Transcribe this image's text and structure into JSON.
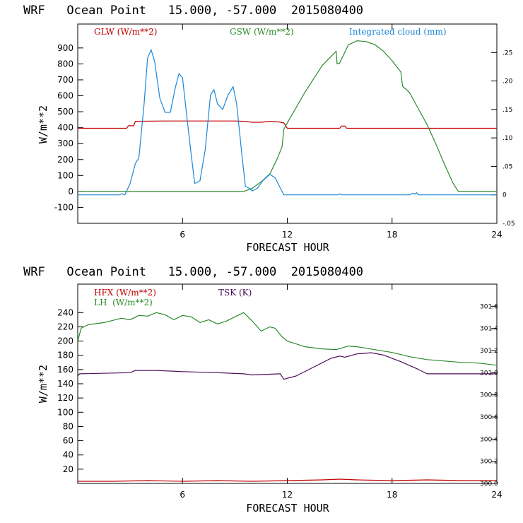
{
  "chart_data": [
    {
      "type": "line",
      "title": "WRF   Ocean Point   15.000, -57.000  2015080400",
      "xlabel": "FORECAST HOUR",
      "ylabel": "W/m**2",
      "xlim": [
        0,
        24
      ],
      "ylim": [
        -200,
        1050
      ],
      "y2lim": [
        -0.05,
        0.3
      ],
      "x_ticks": [
        6,
        12,
        18,
        24
      ],
      "y_ticks": [
        -100,
        0,
        100,
        200,
        300,
        400,
        500,
        600,
        700,
        800,
        900
      ],
      "y2_ticks": [
        -0.05,
        0,
        0.05,
        0.1,
        0.15,
        0.2,
        0.25
      ],
      "y2_tick_labels": [
        "-.05",
        "0",
        ".05",
        ".10",
        ".15",
        ".20",
        ".25"
      ],
      "series": [
        {
          "name": "GLW (W/m**2)",
          "color": "#c00000",
          "axis": "left",
          "points": [
            [
              0,
              396
            ],
            [
              2.8,
              396
            ],
            [
              2.9,
              412
            ],
            [
              3.2,
              412
            ],
            [
              3.3,
              440
            ],
            [
              5,
              442
            ],
            [
              7,
              442
            ],
            [
              9,
              442
            ],
            [
              9.5,
              440
            ],
            [
              10,
              434
            ],
            [
              10.5,
              434
            ],
            [
              11,
              440
            ],
            [
              11.5,
              436
            ],
            [
              11.8,
              430
            ],
            [
              12,
              396
            ],
            [
              15,
              396
            ],
            [
              15.1,
              410
            ],
            [
              15.3,
              410
            ],
            [
              15.4,
              396
            ],
            [
              24,
              396
            ]
          ]
        },
        {
          "name": "GSW (W/m**2)",
          "color": "#2a8a2a",
          "axis": "left",
          "points": [
            [
              0,
              0
            ],
            [
              9.5,
              0
            ],
            [
              10,
              20
            ],
            [
              10.5,
              60
            ],
            [
              11,
              110
            ],
            [
              11.4,
              200
            ],
            [
              11.7,
              280
            ],
            [
              11.8,
              390
            ],
            [
              12,
              430
            ],
            [
              13,
              620
            ],
            [
              14,
              790
            ],
            [
              14.8,
              880
            ],
            [
              14.85,
              800
            ],
            [
              15.0,
              805
            ],
            [
              15.5,
              920
            ],
            [
              16,
              945
            ],
            [
              16.5,
              940
            ],
            [
              17,
              922
            ],
            [
              17.5,
              880
            ],
            [
              18,
              820
            ],
            [
              18.5,
              750
            ],
            [
              18.6,
              660
            ],
            [
              18.8,
              640
            ],
            [
              19,
              620
            ],
            [
              19.5,
              520
            ],
            [
              20,
              420
            ],
            [
              20.5,
              300
            ],
            [
              21,
              170
            ],
            [
              21.5,
              50
            ],
            [
              21.8,
              0
            ],
            [
              24,
              0
            ]
          ]
        },
        {
          "name": "Integrated cloud (mm)",
          "color": "#1a86d8",
          "axis": "right",
          "points": [
            [
              0,
              0
            ],
            [
              2.4,
              0
            ],
            [
              2.5,
              0.002
            ],
            [
              2.7,
              0
            ],
            [
              3,
              0.02
            ],
            [
              3.3,
              0.055
            ],
            [
              3.5,
              0.065
            ],
            [
              3.8,
              0.16
            ],
            [
              4,
              0.24
            ],
            [
              4.2,
              0.255
            ],
            [
              4.4,
              0.235
            ],
            [
              4.7,
              0.17
            ],
            [
              5,
              0.145
            ],
            [
              5.3,
              0.145
            ],
            [
              5.6,
              0.19
            ],
            [
              5.8,
              0.213
            ],
            [
              6,
              0.205
            ],
            [
              6.2,
              0.15
            ],
            [
              6.5,
              0.07
            ],
            [
              6.7,
              0.02
            ],
            [
              7,
              0.025
            ],
            [
              7.3,
              0.08
            ],
            [
              7.6,
              0.175
            ],
            [
              7.8,
              0.185
            ],
            [
              8,
              0.16
            ],
            [
              8.3,
              0.15
            ],
            [
              8.6,
              0.175
            ],
            [
              8.9,
              0.19
            ],
            [
              9.1,
              0.16
            ],
            [
              9.4,
              0.07
            ],
            [
              9.6,
              0.015
            ],
            [
              9.8,
              0.012
            ],
            [
              10,
              0.007
            ],
            [
              10.3,
              0.012
            ],
            [
              10.6,
              0.025
            ],
            [
              11,
              0.036
            ],
            [
              11.3,
              0.03
            ],
            [
              11.6,
              0.012
            ],
            [
              11.8,
              0
            ],
            [
              14.9,
              0
            ],
            [
              15,
              0.002
            ],
            [
              15.1,
              0
            ],
            [
              19.0,
              0
            ],
            [
              19.2,
              0.003
            ],
            [
              19.3,
              0.001
            ],
            [
              19.4,
              0.004
            ],
            [
              19.5,
              0
            ],
            [
              24,
              0
            ]
          ]
        }
      ]
    },
    {
      "type": "line",
      "title": "WRF   Ocean Point   15.000, -57.000  2015080400",
      "xlabel": "FORECAST HOUR",
      "ylabel": "W/m**2",
      "xlim": [
        0,
        24
      ],
      "ylim": [
        0,
        280
      ],
      "y2lim": [
        300.0,
        301.8
      ],
      "x_ticks": [
        6,
        12,
        18,
        24
      ],
      "y_ticks": [
        20,
        40,
        60,
        80,
        100,
        120,
        140,
        160,
        180,
        200,
        220,
        240
      ],
      "y2_ticks": [
        300.0,
        300.2,
        300.4,
        300.6,
        300.8,
        301.0,
        301.2,
        301.4,
        301.6
      ],
      "y2_tick_labels": [
        "300.0",
        "300.2",
        "300.4",
        "300.6",
        "300.8",
        "301.0",
        "301.2",
        "301.4",
        "301.6"
      ],
      "series": [
        {
          "name": "HFX (W/m**2)",
          "color": "#c00000",
          "axis": "left",
          "points": [
            [
              0,
              3
            ],
            [
              2,
              3
            ],
            [
              4,
              4
            ],
            [
              6,
              3
            ],
            [
              8,
              4
            ],
            [
              10,
              3
            ],
            [
              12,
              4
            ],
            [
              14,
              5
            ],
            [
              15,
              6
            ],
            [
              16,
              5
            ],
            [
              18,
              4
            ],
            [
              20,
              5
            ],
            [
              22,
              4
            ],
            [
              24,
              4
            ]
          ]
        },
        {
          "name": "LH  (W/m**2)",
          "color": "#2a8a2a",
          "axis": "left",
          "points": [
            [
              0,
              200
            ],
            [
              0.2,
              218
            ],
            [
              0.6,
              223
            ],
            [
              1.5,
              226
            ],
            [
              2.5,
              232
            ],
            [
              3,
              230
            ],
            [
              3.5,
              236
            ],
            [
              4,
              235
            ],
            [
              4.5,
              240
            ],
            [
              5,
              237
            ],
            [
              5.5,
              230
            ],
            [
              6,
              236
            ],
            [
              6.5,
              234
            ],
            [
              7,
              226
            ],
            [
              7.5,
              230
            ],
            [
              8,
              224
            ],
            [
              8.5,
              228
            ],
            [
              9,
              234
            ],
            [
              9.5,
              240
            ],
            [
              10,
              228
            ],
            [
              10.5,
              214
            ],
            [
              11,
              220
            ],
            [
              11.3,
              218
            ],
            [
              11.7,
              206
            ],
            [
              12,
              200
            ],
            [
              13,
              192
            ],
            [
              14,
              189
            ],
            [
              14.8,
              188
            ],
            [
              15.5,
              193
            ],
            [
              16,
              192
            ],
            [
              17,
              188
            ],
            [
              18,
              184
            ],
            [
              19,
              178
            ],
            [
              20,
              174
            ],
            [
              21,
              172
            ],
            [
              22,
              170
            ],
            [
              23,
              169
            ],
            [
              24,
              166
            ]
          ]
        },
        {
          "name": "TSK (K)",
          "color": "#4a0c5a",
          "axis": "right",
          "points": [
            [
              0,
              300.97
            ],
            [
              0.1,
              300.99
            ],
            [
              3,
              301.0
            ],
            [
              3.3,
              301.02
            ],
            [
              4.5,
              301.02
            ],
            [
              6,
              301.01
            ],
            [
              8,
              301.0
            ],
            [
              9.5,
              300.99
            ],
            [
              10,
              300.98
            ],
            [
              11.6,
              300.99
            ],
            [
              11.8,
              300.94
            ],
            [
              12,
              300.95
            ],
            [
              12.5,
              300.97
            ],
            [
              13.5,
              301.05
            ],
            [
              14.5,
              301.13
            ],
            [
              15,
              301.15
            ],
            [
              15.3,
              301.14
            ],
            [
              16,
              301.17
            ],
            [
              16.8,
              301.18
            ],
            [
              17.5,
              301.16
            ],
            [
              18.5,
              301.1
            ],
            [
              19.5,
              301.03
            ],
            [
              20,
              300.99
            ],
            [
              21,
              300.99
            ],
            [
              24,
              300.99
            ]
          ]
        }
      ]
    }
  ]
}
